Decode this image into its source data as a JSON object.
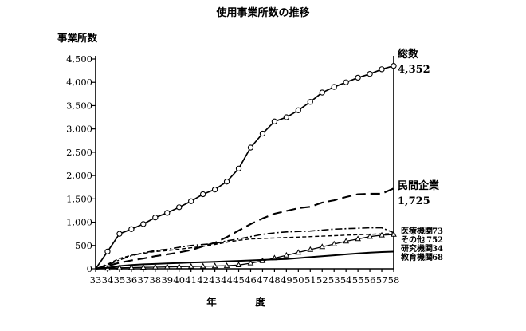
{
  "chart_data": {
    "type": "line",
    "title": "使用事業所数の推移",
    "xlabel": "年　度",
    "ylabel": "事業所数",
    "categories": [
      "33",
      "34",
      "35",
      "36",
      "37",
      "38",
      "39",
      "40",
      "41",
      "42",
      "43",
      "44",
      "45",
      "46",
      "47",
      "48",
      "49",
      "50",
      "51",
      "52",
      "53",
      "54",
      "55",
      "56",
      "57",
      "58"
    ],
    "ylim": [
      0,
      4500
    ],
    "yticks": [
      "0",
      "500",
      "1,000",
      "1,500",
      "2,000",
      "2,500",
      "3,000",
      "3,500",
      "4,000",
      "4,500"
    ],
    "grid": false,
    "series": [
      {
        "name": "総数",
        "end_value": "4,352",
        "style": "solid-circle",
        "values": [
          0,
          370,
          750,
          850,
          960,
          1100,
          1200,
          1320,
          1450,
          1600,
          1700,
          1870,
          2150,
          2600,
          2900,
          3160,
          3250,
          3400,
          3580,
          3780,
          3900,
          4000,
          4100,
          4180,
          4280,
          4352
        ]
      },
      {
        "name": "民間企業",
        "end_value": "1,725",
        "style": "long-dash",
        "values": [
          0,
          60,
          130,
          180,
          220,
          270,
          310,
          350,
          400,
          480,
          560,
          680,
          820,
          960,
          1080,
          1180,
          1240,
          1300,
          1330,
          1420,
          1470,
          1540,
          1600,
          1610,
          1610,
          1725
        ]
      },
      {
        "name": "医療機関",
        "end_value": "773",
        "style": "dash-dot",
        "values": [
          0,
          80,
          190,
          280,
          340,
          390,
          420,
          460,
          500,
          520,
          540,
          600,
          640,
          690,
          740,
          770,
          790,
          800,
          810,
          830,
          850,
          860,
          870,
          880,
          880,
          773
        ]
      },
      {
        "name": "その他",
        "end_value": "752",
        "style": "short-dash",
        "values": [
          0,
          100,
          220,
          290,
          330,
          370,
          390,
          420,
          450,
          480,
          520,
          570,
          610,
          640,
          650,
          660,
          670,
          680,
          690,
          700,
          710,
          720,
          730,
          740,
          750,
          752
        ]
      },
      {
        "name": "研究機関",
        "end_value": "734",
        "style": "solid-triangle",
        "values": [
          0,
          10,
          20,
          25,
          30,
          35,
          40,
          45,
          50,
          55,
          60,
          65,
          80,
          120,
          170,
          230,
          290,
          350,
          410,
          470,
          530,
          590,
          640,
          690,
          720,
          734
        ]
      },
      {
        "name": "教育機関",
        "end_value": "368",
        "style": "solid",
        "values": [
          0,
          20,
          60,
          80,
          95,
          105,
          115,
          125,
          135,
          140,
          150,
          160,
          170,
          180,
          190,
          200,
          210,
          230,
          250,
          270,
          290,
          310,
          330,
          345,
          360,
          368
        ]
      }
    ]
  }
}
